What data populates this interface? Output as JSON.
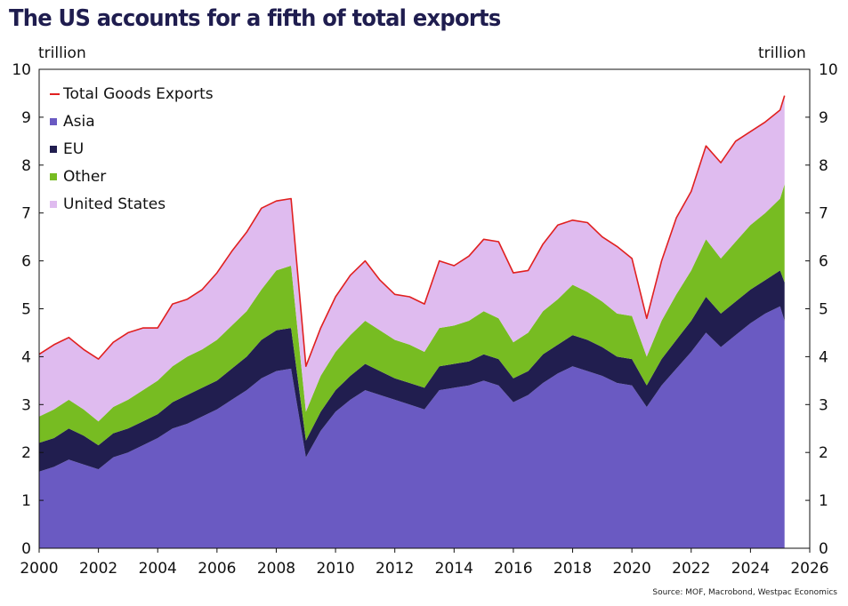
{
  "title": "The US accounts for a fifth of total exports",
  "source": "Source: MOF, Macrobond, Westpac Economics",
  "colors": {
    "asia": "#6a5ac2",
    "eu": "#211e4f",
    "other": "#77bc22",
    "us": "#dfbbef",
    "total": "#e02020"
  },
  "chart_data": {
    "type": "area",
    "title": "The US accounts for a fifth of total exports",
    "ylabel_left": "trillion",
    "ylabel_right": "trillion",
    "xlim": [
      2000,
      2026
    ],
    "ylim": [
      0,
      10
    ],
    "x_ticks": [
      "2000",
      "2002",
      "2004",
      "2006",
      "2008",
      "2010",
      "2012",
      "2014",
      "2016",
      "2018",
      "2020",
      "2022",
      "2024",
      "2026"
    ],
    "y_ticks": [
      "0",
      "1",
      "2",
      "3",
      "4",
      "5",
      "6",
      "7",
      "8",
      "9",
      "10"
    ],
    "legend": [
      {
        "key": "total",
        "label": "Total Goods Exports",
        "kind": "line"
      },
      {
        "key": "asia",
        "label": "Asia",
        "kind": "box"
      },
      {
        "key": "eu",
        "label": "EU",
        "kind": "box"
      },
      {
        "key": "other",
        "label": "Other",
        "kind": "box"
      },
      {
        "key": "us",
        "label": "United States",
        "kind": "box"
      }
    ],
    "x": [
      2000.0,
      2000.5,
      2001.0,
      2001.5,
      2002.0,
      2002.5,
      2003.0,
      2003.5,
      2004.0,
      2004.5,
      2005.0,
      2005.5,
      2006.0,
      2006.5,
      2007.0,
      2007.5,
      2008.0,
      2008.5,
      2009.0,
      2009.5,
      2010.0,
      2010.5,
      2011.0,
      2011.5,
      2012.0,
      2012.5,
      2013.0,
      2013.5,
      2014.0,
      2014.5,
      2015.0,
      2015.5,
      2016.0,
      2016.5,
      2017.0,
      2017.5,
      2018.0,
      2018.5,
      2019.0,
      2019.5,
      2020.0,
      2020.5,
      2021.0,
      2021.5,
      2022.0,
      2022.5,
      2023.0,
      2023.5,
      2024.0,
      2024.5,
      2025.0,
      2025.15
    ],
    "series": [
      {
        "name": "Asia",
        "key": "asia",
        "values": [
          1.6,
          1.7,
          1.85,
          1.75,
          1.65,
          1.9,
          2.0,
          2.15,
          2.3,
          2.5,
          2.6,
          2.75,
          2.9,
          3.1,
          3.3,
          3.55,
          3.7,
          3.75,
          1.9,
          2.45,
          2.85,
          3.1,
          3.3,
          3.2,
          3.1,
          3.0,
          2.9,
          3.3,
          3.35,
          3.4,
          3.5,
          3.4,
          3.05,
          3.2,
          3.45,
          3.65,
          3.8,
          3.7,
          3.6,
          3.45,
          3.4,
          2.95,
          3.4,
          3.75,
          4.1,
          4.5,
          4.2,
          4.45,
          4.7,
          4.9,
          5.05,
          4.75
        ]
      },
      {
        "name": "EU",
        "key": "eu",
        "values": [
          0.6,
          0.6,
          0.65,
          0.6,
          0.5,
          0.5,
          0.5,
          0.5,
          0.5,
          0.55,
          0.6,
          0.6,
          0.6,
          0.65,
          0.7,
          0.8,
          0.85,
          0.85,
          0.35,
          0.4,
          0.45,
          0.5,
          0.55,
          0.5,
          0.45,
          0.45,
          0.45,
          0.5,
          0.5,
          0.5,
          0.55,
          0.55,
          0.5,
          0.5,
          0.6,
          0.6,
          0.65,
          0.65,
          0.6,
          0.55,
          0.55,
          0.45,
          0.55,
          0.6,
          0.65,
          0.75,
          0.7,
          0.7,
          0.7,
          0.7,
          0.75,
          0.8
        ]
      },
      {
        "name": "Other",
        "key": "other",
        "values": [
          0.55,
          0.6,
          0.6,
          0.55,
          0.5,
          0.55,
          0.6,
          0.65,
          0.7,
          0.75,
          0.8,
          0.8,
          0.85,
          0.9,
          0.95,
          1.05,
          1.25,
          1.3,
          0.6,
          0.75,
          0.8,
          0.85,
          0.9,
          0.85,
          0.8,
          0.8,
          0.75,
          0.8,
          0.8,
          0.85,
          0.9,
          0.85,
          0.75,
          0.8,
          0.9,
          0.95,
          1.05,
          1.0,
          0.95,
          0.9,
          0.9,
          0.6,
          0.8,
          0.95,
          1.05,
          1.2,
          1.15,
          1.25,
          1.35,
          1.4,
          1.5,
          2.05
        ]
      },
      {
        "name": "United States",
        "key": "us",
        "values": [
          1.3,
          1.35,
          1.3,
          1.25,
          1.3,
          1.35,
          1.4,
          1.3,
          1.1,
          1.3,
          1.2,
          1.25,
          1.4,
          1.55,
          1.65,
          1.7,
          1.45,
          1.4,
          0.95,
          1.0,
          1.15,
          1.25,
          1.25,
          1.05,
          0.95,
          1.0,
          1.0,
          1.4,
          1.25,
          1.35,
          1.5,
          1.6,
          1.45,
          1.3,
          1.4,
          1.55,
          1.35,
          1.45,
          1.35,
          1.4,
          1.2,
          0.8,
          1.25,
          1.6,
          1.65,
          1.95,
          2.0,
          2.1,
          1.95,
          1.9,
          1.85,
          1.85
        ]
      },
      {
        "name": "Total Goods Exports",
        "key": "total",
        "values": [
          4.05,
          4.25,
          4.4,
          4.15,
          3.95,
          4.3,
          4.5,
          4.6,
          4.6,
          5.1,
          5.2,
          5.4,
          5.75,
          6.2,
          6.6,
          7.1,
          7.25,
          7.3,
          3.8,
          4.6,
          5.25,
          5.7,
          6.0,
          5.6,
          5.3,
          5.25,
          5.1,
          6.0,
          5.9,
          6.1,
          6.45,
          6.4,
          5.75,
          5.8,
          6.35,
          6.75,
          6.85,
          6.8,
          6.5,
          6.3,
          6.05,
          4.8,
          6.0,
          6.9,
          7.45,
          8.4,
          8.05,
          8.5,
          8.7,
          8.9,
          9.15,
          9.45
        ]
      }
    ]
  }
}
